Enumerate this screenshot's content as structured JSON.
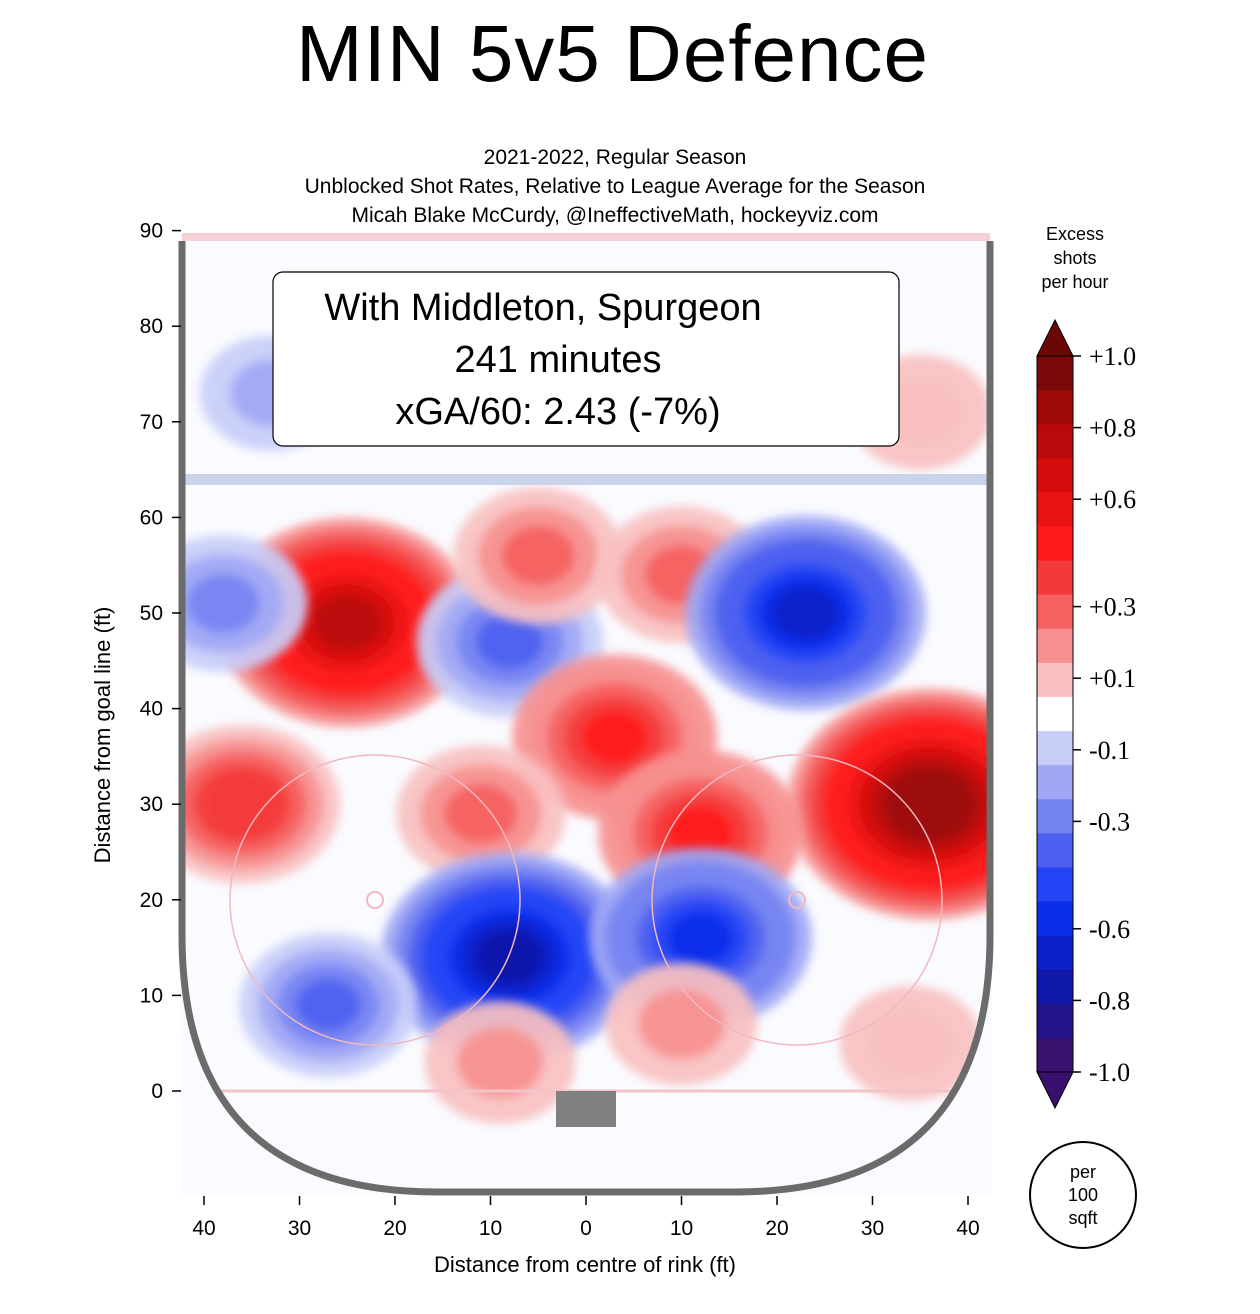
{
  "title": "MIN 5v5 Defence",
  "subtitle_lines": [
    "2021-2022, Regular Season",
    "Unblocked Shot Rates, Relative to League Average for the Season",
    "Micah Blake McCurdy, @IneffectiveMath, hockeyviz.com"
  ],
  "info": {
    "line1": "With Middleton, Spurgeon",
    "line2": "241 minutes",
    "line3": "xGA/60: 2.43 (-7%)"
  },
  "colorbar": {
    "title_lines": [
      "Excess",
      "shots",
      "per hour"
    ],
    "tick_labels": [
      "+1.0",
      "+0.8",
      "+0.6",
      "+0.3",
      "+0.1",
      "-0.1",
      "-0.3",
      "-0.6",
      "-0.8",
      "-1.0"
    ],
    "tick_values": [
      1.0,
      0.8,
      0.6,
      0.3,
      0.1,
      -0.1,
      -0.3,
      -0.6,
      -0.8,
      -1.0
    ],
    "colors": [
      "#7a0a0a",
      "#9c0a0a",
      "#b80a0a",
      "#d40c0c",
      "#e81212",
      "#ff1a1a",
      "#f33a3a",
      "#f56060",
      "#f79090",
      "#f9c0c0",
      "#ffffff",
      "#c8cdf8",
      "#a0a8f5",
      "#7684f2",
      "#4c60f0",
      "#2244f5",
      "#0a2ee8",
      "#0c22c8",
      "#1018a8",
      "#24148c",
      "#3a1070"
    ],
    "units_lines": [
      "per",
      "100",
      "sqft"
    ]
  },
  "chart_data": {
    "type": "heatmap",
    "title": "MIN 5v5 Defence",
    "xlabel": "Distance from centre of rink (ft)",
    "ylabel": "Distance from goal line (ft)",
    "x_ticks": [
      40,
      30,
      20,
      10,
      0,
      10,
      20,
      30,
      40
    ],
    "y_ticks": [
      90,
      80,
      70,
      60,
      50,
      40,
      30,
      20,
      10,
      0
    ],
    "xlim": [
      -42.5,
      42.5
    ],
    "ylim": [
      -11,
      90
    ],
    "hotspots": [
      {
        "x": -25,
        "y": 49,
        "value": 0.8
      },
      {
        "x": -36,
        "y": 30,
        "value": 0.45
      },
      {
        "x": -33,
        "y": 73,
        "value": -0.15
      },
      {
        "x": -38,
        "y": 51,
        "value": -0.3
      },
      {
        "x": -8,
        "y": 47,
        "value": -0.4
      },
      {
        "x": 3,
        "y": 37,
        "value": 0.5
      },
      {
        "x": -11,
        "y": 29,
        "value": 0.3
      },
      {
        "x": -5,
        "y": 56,
        "value": 0.3
      },
      {
        "x": 10,
        "y": 54,
        "value": 0.3
      },
      {
        "x": 23,
        "y": 50,
        "value": -0.7
      },
      {
        "x": 36,
        "y": 30,
        "value": 0.95
      },
      {
        "x": 12,
        "y": 27,
        "value": 0.5
      },
      {
        "x": 35,
        "y": 71,
        "value": 0.15
      },
      {
        "x": -8,
        "y": 14,
        "value": -0.8
      },
      {
        "x": 12,
        "y": 16,
        "value": -0.6
      },
      {
        "x": -27,
        "y": 9,
        "value": -0.35
      },
      {
        "x": -9,
        "y": 3,
        "value": 0.2
      },
      {
        "x": 10,
        "y": 7,
        "value": 0.2
      },
      {
        "x": 34,
        "y": 5,
        "value": 0.15
      }
    ]
  }
}
